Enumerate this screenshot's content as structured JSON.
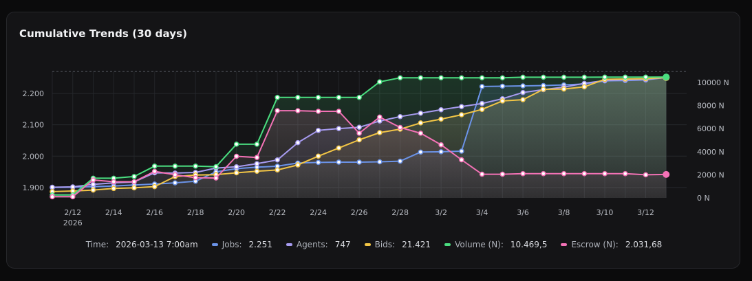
{
  "card": {
    "title": "Cumulative Trends (30 days)"
  },
  "legend": {
    "time_label": "Time:",
    "time_value": "2026-03-13 7:00am",
    "items": [
      {
        "label": "Jobs:",
        "value": "2.251",
        "color": "#6b93e8"
      },
      {
        "label": "Agents:",
        "value": "747",
        "color": "#a79bf0"
      },
      {
        "label": "Bids:",
        "value": "21.421",
        "color": "#f2c545"
      },
      {
        "label": "Volume (N):",
        "value": "10.469,5",
        "color": "#4ade80"
      },
      {
        "label": "Escrow (N):",
        "value": "2.031,68",
        "color": "#f472b6"
      }
    ]
  },
  "chart_data": {
    "type": "line",
    "x": [
      "2026-02-11",
      "2026-02-12",
      "2026-02-13",
      "2026-02-14",
      "2026-02-15",
      "2026-02-16",
      "2026-02-17",
      "2026-02-18",
      "2026-02-19",
      "2026-02-20",
      "2026-02-21",
      "2026-02-22",
      "2026-02-23",
      "2026-02-24",
      "2026-02-25",
      "2026-02-26",
      "2026-02-27",
      "2026-02-28",
      "2026-03-01",
      "2026-03-02",
      "2026-03-03",
      "2026-03-04",
      "2026-03-05",
      "2026-03-06",
      "2026-03-07",
      "2026-03-08",
      "2026-03-09",
      "2026-03-10",
      "2026-03-11",
      "2026-03-12",
      "2026-03-13"
    ],
    "x_tick_labels": [
      {
        "date": "2026-02-12",
        "label": "2/12",
        "sublabel": "2026"
      },
      {
        "date": "2026-02-14",
        "label": "2/14"
      },
      {
        "date": "2026-02-16",
        "label": "2/16"
      },
      {
        "date": "2026-02-18",
        "label": "2/18"
      },
      {
        "date": "2026-02-20",
        "label": "2/20"
      },
      {
        "date": "2026-02-22",
        "label": "2/22"
      },
      {
        "date": "2026-02-24",
        "label": "2/24"
      },
      {
        "date": "2026-02-26",
        "label": "2/26"
      },
      {
        "date": "2026-02-28",
        "label": "2/28"
      },
      {
        "date": "2026-03-02",
        "label": "3/2"
      },
      {
        "date": "2026-03-04",
        "label": "3/4"
      },
      {
        "date": "2026-03-06",
        "label": "3/6"
      },
      {
        "date": "2026-03-08",
        "label": "3/8"
      },
      {
        "date": "2026-03-10",
        "label": "3/10"
      },
      {
        "date": "2026-03-12",
        "label": "3/12"
      }
    ],
    "x_range": [
      "2026-02-11",
      "2026-03-14"
    ],
    "y_left": {
      "ticks": [
        1.9,
        2.0,
        2.1,
        2.2
      ],
      "tick_labels": [
        "1.900",
        "2.000",
        "2.100",
        "2.200"
      ],
      "range": [
        1.867,
        2.27
      ]
    },
    "y_right": {
      "ticks": [
        0,
        2000,
        4000,
        6000,
        8000,
        10000
      ],
      "tick_labels": [
        "0 N",
        "2000 N",
        "4000 N",
        "6000 N",
        "8000 N",
        "10000 N"
      ],
      "range": [
        0,
        10950
      ]
    },
    "grid": true,
    "series": [
      {
        "name": "Jobs",
        "axis": "left",
        "color": "#6b93e8",
        "values": [
          1.9,
          1.901,
          1.903,
          1.905,
          1.908,
          1.911,
          1.915,
          1.92,
          1.95,
          1.96,
          1.965,
          1.968,
          1.978,
          1.98,
          1.981,
          1.981,
          1.982,
          1.984,
          2.013,
          2.014,
          2.016,
          2.222,
          2.223,
          2.224,
          2.225,
          2.227,
          2.23,
          2.24,
          2.241,
          2.243,
          2.251
        ]
      },
      {
        "name": "Agents",
        "axis": "left",
        "color": "#a79bf0",
        "values": [
          1.901,
          1.902,
          1.91,
          1.915,
          1.918,
          1.947,
          1.946,
          1.948,
          1.962,
          1.966,
          1.976,
          1.988,
          2.043,
          2.082,
          2.088,
          2.092,
          2.112,
          2.126,
          2.137,
          2.148,
          2.158,
          2.168,
          2.183,
          2.203,
          2.212,
          2.22,
          2.232,
          2.241,
          2.243,
          2.244,
          2.251
        ]
      },
      {
        "name": "Bids",
        "axis": "left",
        "color": "#f2c545",
        "values": [
          1.887,
          1.889,
          1.892,
          1.897,
          1.899,
          1.903,
          1.935,
          1.94,
          1.941,
          1.947,
          1.952,
          1.956,
          1.972,
          2.0,
          2.026,
          2.052,
          2.075,
          2.086,
          2.106,
          2.118,
          2.132,
          2.149,
          2.176,
          2.18,
          2.213,
          2.214,
          2.221,
          2.245,
          2.246,
          2.247,
          2.251
        ]
      },
      {
        "name": "Volume (N)",
        "axis": "right",
        "color": "#4ade80",
        "values": [
          250,
          250,
          1700,
          1700,
          1850,
          2750,
          2750,
          2750,
          2700,
          4650,
          4650,
          8700,
          8700,
          8700,
          8700,
          8700,
          10050,
          10400,
          10400,
          10400,
          10400,
          10400,
          10400,
          10450,
          10450,
          10450,
          10450,
          10460,
          10460,
          10460,
          10469.5
        ]
      },
      {
        "name": "Escrow (N)",
        "axis": "right",
        "color": "#f472b6",
        "values": [
          100,
          100,
          1550,
          1400,
          1400,
          2300,
          2000,
          1750,
          1720,
          3600,
          3500,
          7550,
          7550,
          7500,
          7500,
          5600,
          7000,
          6100,
          5600,
          4600,
          3300,
          2050,
          2050,
          2100,
          2100,
          2100,
          2100,
          2100,
          2100,
          2000,
          2031.68
        ]
      }
    ]
  }
}
